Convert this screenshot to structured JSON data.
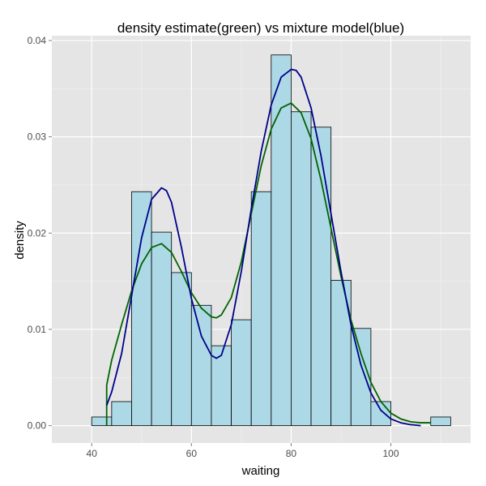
{
  "chart_data": {
    "type": "histogram",
    "title": "density estimate(green) vs mixture model(blue)",
    "xlabel": "waiting",
    "ylabel": "density",
    "xlim": [
      32,
      116
    ],
    "ylim": [
      -0.0018,
      0.0405
    ],
    "x_ticks": [
      40,
      60,
      80,
      100
    ],
    "y_ticks": [
      0.0,
      0.01,
      0.02,
      0.03,
      0.04
    ],
    "y_tick_labels": [
      "0.00",
      "0.01",
      "0.02",
      "0.03",
      "0.04"
    ],
    "grid": true,
    "background": "#e5e5e5",
    "bar_fill": "#add8e6",
    "bar_edge": "#000000",
    "bins": [
      {
        "x0": 36,
        "x1": 40,
        "density": 0.0
      },
      {
        "x0": 40,
        "x1": 44,
        "density": 0.0009
      },
      {
        "x0": 44,
        "x1": 48,
        "density": 0.0025
      },
      {
        "x0": 48,
        "x1": 52,
        "density": 0.0243
      },
      {
        "x0": 52,
        "x1": 56,
        "density": 0.0201
      },
      {
        "x0": 56,
        "x1": 60,
        "density": 0.0159
      },
      {
        "x0": 60,
        "x1": 64,
        "density": 0.0125
      },
      {
        "x0": 64,
        "x1": 68,
        "density": 0.0083
      },
      {
        "x0": 68,
        "x1": 72,
        "density": 0.011
      },
      {
        "x0": 72,
        "x1": 76,
        "density": 0.0243
      },
      {
        "x0": 76,
        "x1": 80,
        "density": 0.0385
      },
      {
        "x0": 80,
        "x1": 84,
        "density": 0.0326
      },
      {
        "x0": 84,
        "x1": 88,
        "density": 0.031
      },
      {
        "x0": 88,
        "x1": 92,
        "density": 0.0151
      },
      {
        "x0": 92,
        "x1": 96,
        "density": 0.0101
      },
      {
        "x0": 96,
        "x1": 100,
        "density": 0.0025
      },
      {
        "x0": 100,
        "x1": 104,
        "density": 0.0
      },
      {
        "x0": 104,
        "x1": 108,
        "density": 0.0
      },
      {
        "x0": 108,
        "x1": 112,
        "density": 0.0009
      }
    ],
    "series": [
      {
        "color": "#006400",
        "x": [
          43,
          43,
          44,
          46,
          48,
          50,
          52,
          54,
          56,
          58,
          60,
          62,
          64,
          65,
          66,
          68,
          70,
          72,
          74,
          76,
          78,
          80,
          82,
          84,
          86,
          88,
          90,
          92,
          94,
          96,
          98,
          100,
          102,
          104,
          106,
          108
        ],
        "y": [
          0.0,
          0.0042,
          0.0068,
          0.0105,
          0.014,
          0.0168,
          0.0185,
          0.0189,
          0.018,
          0.016,
          0.0138,
          0.0122,
          0.0113,
          0.0112,
          0.0115,
          0.0133,
          0.017,
          0.022,
          0.027,
          0.0308,
          0.033,
          0.0335,
          0.0325,
          0.0298,
          0.0255,
          0.0205,
          0.0155,
          0.011,
          0.0075,
          0.0045,
          0.0025,
          0.0013,
          0.0007,
          0.0004,
          0.0003,
          0.0003
        ]
      },
      {
        "color": "#00008b",
        "x": [
          43,
          44,
          46,
          48,
          50,
          52,
          54,
          55,
          56,
          58,
          60,
          62,
          64,
          65,
          66,
          68,
          70,
          72,
          74,
          76,
          78,
          80,
          81,
          82,
          84,
          86,
          88,
          90,
          92,
          94,
          96,
          98,
          100,
          102,
          104,
          106
        ],
        "y": [
          0.0021,
          0.0035,
          0.0075,
          0.0135,
          0.0195,
          0.0235,
          0.0247,
          0.0244,
          0.0232,
          0.0185,
          0.0132,
          0.0093,
          0.0073,
          0.007,
          0.0073,
          0.0105,
          0.016,
          0.0225,
          0.0285,
          0.0333,
          0.0362,
          0.037,
          0.0369,
          0.0362,
          0.033,
          0.028,
          0.022,
          0.016,
          0.0105,
          0.0063,
          0.0034,
          0.0016,
          0.0007,
          0.0003,
          0.0001,
          0.0
        ]
      }
    ]
  }
}
